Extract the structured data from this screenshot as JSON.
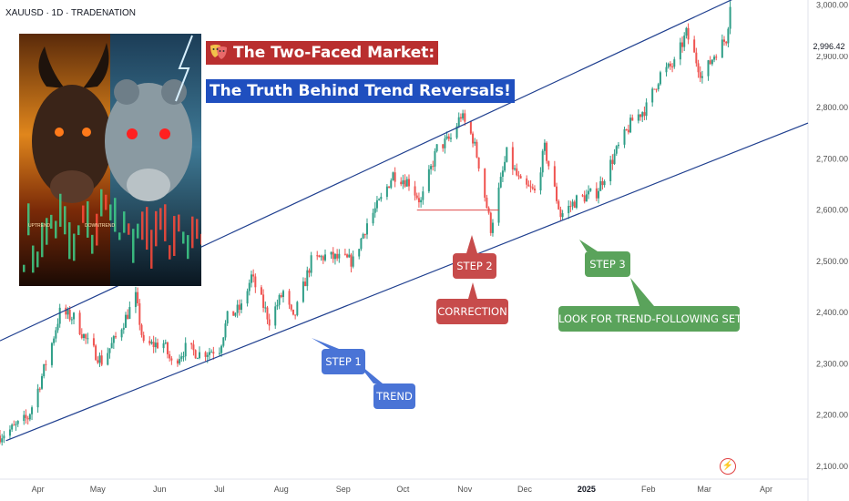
{
  "symbol": "XAUUSD · 1D · TRADENATION",
  "title": {
    "line1": "The Two-Faced Market:",
    "line2": "The Truth Behind Trend Reversals!",
    "emoji_icon": "theater-masks-icon"
  },
  "callouts": {
    "step1": "STEP 1",
    "trend": "TREND",
    "step2": "STEP 2",
    "correction": "CORRECTION",
    "step3": "STEP 3",
    "look": "LOOK FOR TREND-FOLLOWING SETUPS"
  },
  "illustration_labels": [
    "UPTREND",
    "DOWNTREND"
  ],
  "colors": {
    "up": "#2f9e88",
    "down": "#ef5350",
    "channel": "#1f3f8f",
    "title_red": "#b92f2f",
    "title_blue": "#1f4fbf",
    "callout_blue": "#4a74d6",
    "callout_red": "#c74b4b",
    "callout_green": "#5aa35b"
  },
  "last_price": "2,996.42",
  "chart_data": {
    "type": "candlestick",
    "instrument": "XAUUSD",
    "timeframe": "1D",
    "x_labels": [
      "Apr",
      "May",
      "Jun",
      "Jul",
      "Aug",
      "Sep",
      "Oct",
      "Nov",
      "Dec",
      "2025",
      "Feb",
      "Mar",
      "Apr"
    ],
    "y_ticks": [
      "3,000.00",
      "2,900.00",
      "2,800.00",
      "2,700.00",
      "2,600.00",
      "2,500.00",
      "2,400.00",
      "2,300.00",
      "2,200.00",
      "2,100.00"
    ],
    "ylim": [
      2075,
      3010
    ],
    "x_range": [
      "2024-03-13",
      "2025-04-22"
    ],
    "close_path": [
      [
        "2024-03-13",
        2160
      ],
      [
        "2024-03-20",
        2175
      ],
      [
        "2024-03-27",
        2195
      ],
      [
        "2024-04-01",
        2250
      ],
      [
        "2024-04-08",
        2340
      ],
      [
        "2024-04-12",
        2400
      ],
      [
        "2024-04-19",
        2390
      ],
      [
        "2024-04-26",
        2340
      ],
      [
        "2024-05-03",
        2305
      ],
      [
        "2024-05-10",
        2350
      ],
      [
        "2024-05-20",
        2430
      ],
      [
        "2024-05-24",
        2335
      ],
      [
        "2024-06-03",
        2340
      ],
      [
        "2024-06-07",
        2300
      ],
      [
        "2024-06-14",
        2330
      ],
      [
        "2024-06-21",
        2320
      ],
      [
        "2024-07-01",
        2330
      ],
      [
        "2024-07-05",
        2390
      ],
      [
        "2024-07-12",
        2410
      ],
      [
        "2024-07-17",
        2470
      ],
      [
        "2024-07-26",
        2385
      ],
      [
        "2024-08-02",
        2440
      ],
      [
        "2024-08-07",
        2385
      ],
      [
        "2024-08-16",
        2500
      ],
      [
        "2024-08-23",
        2510
      ],
      [
        "2024-09-06",
        2500
      ],
      [
        "2024-09-13",
        2575
      ],
      [
        "2024-09-20",
        2620
      ],
      [
        "2024-09-26",
        2670
      ],
      [
        "2024-10-04",
        2655
      ],
      [
        "2024-10-10",
        2615
      ],
      [
        "2024-10-18",
        2720
      ],
      [
        "2024-10-25",
        2740
      ],
      [
        "2024-10-30",
        2785
      ],
      [
        "2024-11-05",
        2740
      ],
      [
        "2024-11-08",
        2690
      ],
      [
        "2024-11-14",
        2565
      ],
      [
        "2024-11-22",
        2710
      ],
      [
        "2024-11-29",
        2650
      ],
      [
        "2024-12-06",
        2635
      ],
      [
        "2024-12-11",
        2720
      ],
      [
        "2024-12-19",
        2590
      ],
      [
        "2024-12-27",
        2620
      ],
      [
        "2025-01-06",
        2635
      ],
      [
        "2025-01-16",
        2715
      ],
      [
        "2025-01-24",
        2775
      ],
      [
        "2025-01-31",
        2800
      ],
      [
        "2025-02-07",
        2865
      ],
      [
        "2025-02-14",
        2885
      ],
      [
        "2025-02-20",
        2945
      ],
      [
        "2025-02-28",
        2860
      ],
      [
        "2025-03-07",
        2910
      ],
      [
        "2025-03-12",
        2935
      ],
      [
        "2025-03-14",
        2996.42
      ]
    ],
    "trendlines": [
      {
        "from": [
          "2024-03-13",
          2345
        ],
        "to": [
          "2025-04-22",
          3080
        ]
      },
      {
        "from": [
          "2024-03-16",
          2150
        ],
        "to": [
          "2025-04-22",
          2770
        ]
      }
    ],
    "level_line": {
      "from": "2024-10-08",
      "to": "2024-11-18",
      "value": 2600
    },
    "grid": false
  }
}
